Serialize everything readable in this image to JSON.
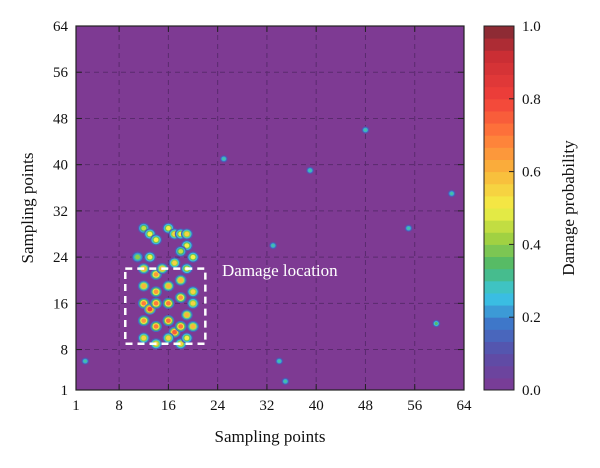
{
  "chart_data": {
    "type": "heatmap",
    "title": "",
    "xlabel": "Sampling points",
    "ylabel": "Sampling points",
    "xlim": [
      1,
      64
    ],
    "ylim": [
      1,
      64
    ],
    "x_ticks": [
      "1",
      "8",
      "16",
      "24",
      "32",
      "40",
      "48",
      "56",
      "64"
    ],
    "y_ticks": [
      "1",
      "8",
      "16",
      "24",
      "32",
      "40",
      "48",
      "56",
      "64"
    ],
    "grid": true,
    "background_value": 0.0,
    "damage_cluster": {
      "points": [
        [
          12,
          29,
          0.45
        ],
        [
          13,
          28,
          0.5
        ],
        [
          14,
          27,
          0.5
        ],
        [
          11,
          24,
          0.4
        ],
        [
          16,
          29,
          0.5
        ],
        [
          17,
          28,
          0.55
        ],
        [
          18,
          28,
          0.5
        ],
        [
          19,
          28,
          0.55
        ],
        [
          19,
          26,
          0.5
        ],
        [
          18,
          25,
          0.45
        ],
        [
          13,
          24,
          0.5
        ],
        [
          12,
          22,
          0.6
        ],
        [
          14,
          21,
          0.65
        ],
        [
          15,
          22,
          0.6
        ],
        [
          17,
          23,
          0.55
        ],
        [
          19,
          22,
          0.5
        ],
        [
          20,
          24,
          0.5
        ],
        [
          12,
          19,
          0.6
        ],
        [
          14,
          18,
          0.65
        ],
        [
          16,
          19,
          0.6
        ],
        [
          18,
          20,
          0.6
        ],
        [
          20,
          18,
          0.55
        ],
        [
          12,
          16,
          0.7
        ],
        [
          13,
          15,
          0.8
        ],
        [
          14,
          16,
          0.7
        ],
        [
          16,
          16,
          0.7
        ],
        [
          18,
          17,
          0.65
        ],
        [
          19,
          14,
          0.6
        ],
        [
          20,
          16,
          0.55
        ],
        [
          12,
          13,
          0.65
        ],
        [
          14,
          12,
          0.7
        ],
        [
          16,
          13,
          0.72
        ],
        [
          17,
          11,
          0.75
        ],
        [
          18,
          12,
          0.7
        ],
        [
          20,
          12,
          0.6
        ],
        [
          12,
          10,
          0.55
        ],
        [
          14,
          9,
          0.55
        ],
        [
          16,
          10,
          0.55
        ],
        [
          18,
          9,
          0.55
        ],
        [
          19,
          10,
          0.5
        ]
      ],
      "damage_box": {
        "x0": 9,
        "x1": 22,
        "y0": 9,
        "y1": 22
      }
    },
    "outlier_points": [
      [
        2.5,
        6,
        0.3
      ],
      [
        25,
        41,
        0.3
      ],
      [
        39,
        39,
        0.3
      ],
      [
        48,
        46,
        0.3
      ],
      [
        62,
        35,
        0.3
      ],
      [
        33,
        26,
        0.3
      ],
      [
        55,
        29,
        0.3
      ],
      [
        59.5,
        12.5,
        0.35
      ],
      [
        34,
        6,
        0.3
      ],
      [
        35,
        2.5,
        0.3
      ]
    ],
    "annotation": "Damage location",
    "colorbar": {
      "label": "Damage probability",
      "range": [
        0.0,
        1.0
      ],
      "ticks": [
        "0.0",
        "0.2",
        "0.4",
        "0.6",
        "0.8",
        "1.0"
      ]
    }
  }
}
